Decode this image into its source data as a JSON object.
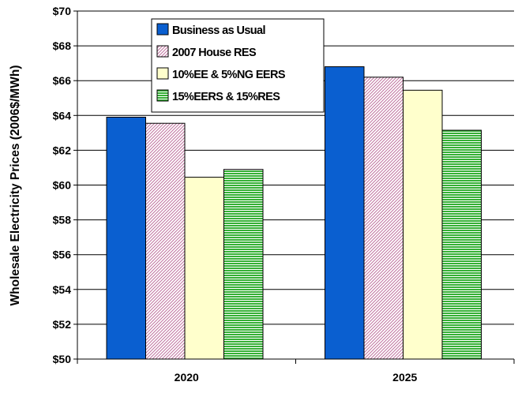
{
  "chart_data": {
    "type": "bar",
    "title": "",
    "xlabel": "",
    "ylabel": "Wholesale Electricity Prices (2006$/MWh)",
    "categories": [
      "2020",
      "2025"
    ],
    "ylim": [
      50,
      70
    ],
    "ytick_step": 2,
    "y_tick_labels": [
      "$50",
      "$52",
      "$54",
      "$56",
      "$58",
      "$60",
      "$62",
      "$64",
      "$66",
      "$68",
      "$70"
    ],
    "grid": true,
    "legend_position": "top-left",
    "series": [
      {
        "name": "Business as Usual",
        "values": [
          63.9,
          66.8
        ],
        "color": "#0a5fd0",
        "pattern": "solid"
      },
      {
        "name": "2007 House RES",
        "values": [
          63.55,
          66.2
        ],
        "color": "#d6a9c4",
        "pattern": "diagonal-hatch"
      },
      {
        "name": "10%EE & 5%NG EERS",
        "values": [
          60.45,
          65.45
        ],
        "color": "#ffffcc",
        "pattern": "solid"
      },
      {
        "name": "15%EERS & 15%RES",
        "values": [
          60.9,
          63.15
        ],
        "color": "#35b035",
        "pattern": "horizontal-stripes"
      }
    ]
  }
}
